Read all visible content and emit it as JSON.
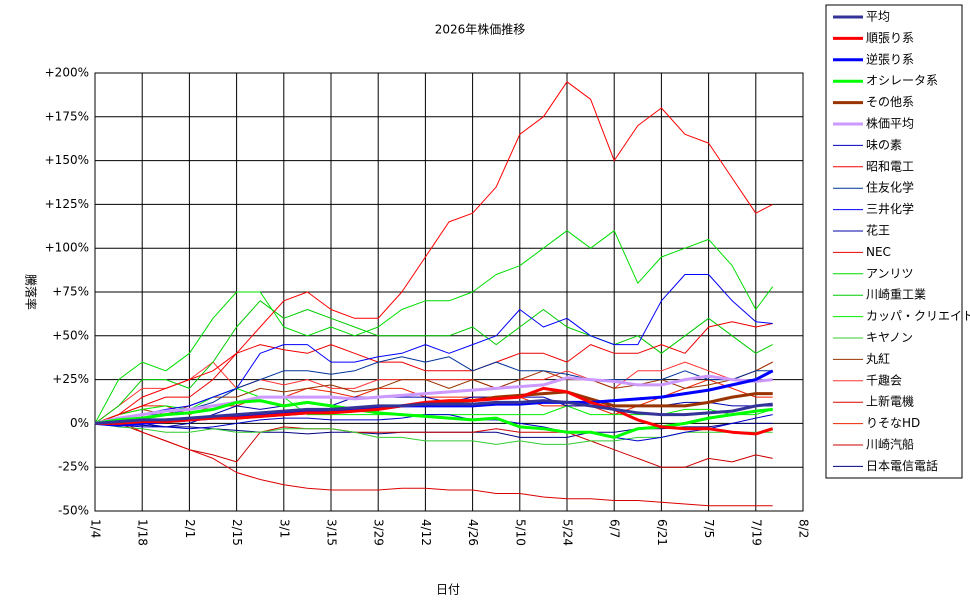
{
  "chart_data": {
    "type": "line",
    "title": "2026年株価推移",
    "x_label": "日付",
    "y_label": "騰落率",
    "x": [
      "1/4",
      "1/11",
      "1/18",
      "1/25",
      "2/1",
      "2/8",
      "2/15",
      "2/22",
      "3/1",
      "3/8",
      "3/15",
      "3/22",
      "3/29",
      "4/5",
      "4/12",
      "4/19",
      "4/26",
      "5/3",
      "5/10",
      "5/17",
      "5/24",
      "5/31",
      "6/7",
      "6/14",
      "6/21",
      "6/28",
      "7/5",
      "7/12",
      "7/19",
      "7/24"
    ],
    "xlim": [
      "1/4",
      "8/2"
    ],
    "xticks": [
      "1/4",
      "1/18",
      "2/1",
      "2/15",
      "3/1",
      "3/15",
      "3/29",
      "4/12",
      "4/26",
      "5/10",
      "5/24",
      "6/7",
      "6/21",
      "7/5",
      "7/19",
      "8/2"
    ],
    "ylim": [
      -50,
      200
    ],
    "yticks": [
      {
        "value": -50,
        "label": "-50%"
      },
      {
        "value": -25,
        "label": "-25%"
      },
      {
        "value": 0,
        "label": "0%"
      },
      {
        "value": 25,
        "label": "+25%"
      },
      {
        "value": 50,
        "label": "+50%"
      },
      {
        "value": 75,
        "label": "+75%"
      },
      {
        "value": 100,
        "label": "+100%"
      },
      {
        "value": 125,
        "label": "+125%"
      },
      {
        "value": 150,
        "label": "+150%"
      },
      {
        "value": 175,
        "label": "+175%"
      },
      {
        "value": 200,
        "label": "+200%"
      }
    ],
    "grid": true,
    "legend": "right",
    "series": [
      {
        "name": "平均",
        "color": "#333399",
        "width": 3,
        "values": [
          0,
          1,
          2,
          2,
          3,
          4,
          5,
          6,
          7,
          8,
          8,
          9,
          10,
          10,
          11,
          11,
          11,
          12,
          12,
          13,
          12,
          10,
          8,
          6,
          5,
          5,
          6,
          7,
          10,
          11
        ]
      },
      {
        "name": "順張り系",
        "color": "#ff0000",
        "width": 3,
        "values": [
          0,
          0,
          1,
          1,
          2,
          3,
          3,
          4,
          5,
          6,
          6,
          7,
          8,
          10,
          12,
          13,
          13,
          14,
          15,
          20,
          18,
          12,
          8,
          2,
          -2,
          -3,
          -3,
          -5,
          -6,
          -3
        ]
      },
      {
        "name": "逆張り系",
        "color": "#0000ff",
        "width": 3,
        "values": [
          0,
          -1,
          0,
          1,
          2,
          3,
          4,
          5,
          6,
          7,
          8,
          8,
          9,
          10,
          10,
          10,
          10,
          11,
          11,
          12,
          12,
          12,
          13,
          14,
          15,
          17,
          19,
          22,
          25,
          30
        ]
      },
      {
        "name": "オシレータ系",
        "color": "#00ff00",
        "width": 3,
        "values": [
          0,
          2,
          3,
          5,
          6,
          8,
          12,
          13,
          10,
          12,
          10,
          8,
          6,
          5,
          4,
          3,
          2,
          3,
          -2,
          -3,
          -5,
          -5,
          -8,
          -3,
          -2,
          0,
          3,
          5,
          7,
          8
        ]
      },
      {
        "name": "その他系",
        "color": "#993300",
        "width": 3,
        "values": [
          0,
          1,
          1,
          2,
          2,
          3,
          3,
          4,
          5,
          6,
          7,
          8,
          9,
          10,
          11,
          12,
          13,
          15,
          16,
          17,
          18,
          14,
          10,
          10,
          10,
          10,
          12,
          15,
          17,
          17
        ]
      },
      {
        "name": "株価平均",
        "color": "#cc99ff",
        "width": 3,
        "values": [
          0,
          3,
          5,
          7,
          8,
          10,
          12,
          15,
          15,
          15,
          15,
          14,
          15,
          16,
          17,
          18,
          19,
          20,
          21,
          22,
          26,
          25,
          24,
          22,
          22,
          25,
          27,
          25,
          24,
          25
        ]
      },
      {
        "name": "味の素",
        "color": "#0000cc",
        "width": 1,
        "values": [
          0,
          -1,
          -2,
          -2,
          -3,
          -2,
          0,
          2,
          3,
          3,
          2,
          2,
          2,
          3,
          5,
          5,
          2,
          2,
          0,
          -2,
          -5,
          -5,
          -8,
          -10,
          -8,
          -5,
          -3,
          0,
          3,
          5
        ]
      },
      {
        "name": "昭和電工",
        "color": "#ff0000",
        "width": 1,
        "values": [
          0,
          5,
          15,
          20,
          25,
          30,
          40,
          55,
          70,
          75,
          65,
          60,
          60,
          75,
          95,
          115,
          120,
          135,
          165,
          175,
          195,
          185,
          150,
          170,
          180,
          165,
          160,
          140,
          120,
          125
        ]
      },
      {
        "name": "住友化学",
        "color": "#003399",
        "width": 1,
        "values": [
          0,
          2,
          5,
          5,
          8,
          12,
          20,
          25,
          30,
          30,
          28,
          30,
          35,
          38,
          35,
          38,
          30,
          35,
          30,
          30,
          28,
          25,
          25,
          25,
          25,
          30,
          25,
          25,
          30,
          30
        ]
      },
      {
        "name": "三井化学",
        "color": "#0000ff",
        "width": 1,
        "values": [
          0,
          3,
          5,
          8,
          10,
          15,
          20,
          40,
          45,
          45,
          35,
          35,
          38,
          40,
          45,
          40,
          45,
          50,
          65,
          55,
          60,
          50,
          45,
          45,
          70,
          85,
          85,
          70,
          58,
          57
        ]
      },
      {
        "name": "花王",
        "color": "#0000aa",
        "width": 1,
        "values": [
          0,
          0,
          0,
          -2,
          0,
          5,
          10,
          8,
          10,
          12,
          10,
          15,
          15,
          15,
          15,
          12,
          15,
          15,
          15,
          15,
          10,
          10,
          10,
          10,
          10,
          12,
          12,
          10,
          10,
          10
        ]
      },
      {
        "name": "NEC",
        "color": "#ee0000",
        "width": 1,
        "values": [
          0,
          5,
          10,
          15,
          15,
          25,
          40,
          45,
          42,
          40,
          45,
          40,
          35,
          35,
          30,
          30,
          30,
          35,
          40,
          40,
          35,
          45,
          40,
          40,
          45,
          40,
          55,
          58,
          55,
          57
        ]
      },
      {
        "name": "アンリツ",
        "color": "#00dd00",
        "width": 1,
        "values": [
          0,
          25,
          35,
          30,
          40,
          60,
          75,
          75,
          55,
          50,
          55,
          50,
          55,
          65,
          70,
          70,
          75,
          85,
          90,
          100,
          110,
          100,
          110,
          80,
          95,
          100,
          105,
          90,
          65,
          78
        ]
      },
      {
        "name": "川崎重工業",
        "color": "#00cc00",
        "width": 1,
        "values": [
          0,
          10,
          25,
          25,
          20,
          35,
          55,
          70,
          60,
          65,
          60,
          55,
          50,
          50,
          50,
          50,
          55,
          45,
          55,
          65,
          55,
          50,
          45,
          50,
          40,
          50,
          60,
          50,
          40,
          45
        ]
      },
      {
        "name": "カッパ・クリエイト",
        "color": "#00ee00",
        "width": 1,
        "values": [
          0,
          5,
          8,
          10,
          8,
          15,
          20,
          15,
          15,
          5,
          5,
          5,
          5,
          5,
          5,
          5,
          5,
          5,
          5,
          5,
          10,
          5,
          5,
          5,
          5,
          8,
          8,
          5,
          5,
          8
        ]
      },
      {
        "name": "キヤノン",
        "color": "#33cc33",
        "width": 1,
        "values": [
          0,
          -2,
          -3,
          -5,
          -5,
          -3,
          -5,
          -5,
          -3,
          -3,
          -3,
          -5,
          -8,
          -8,
          -10,
          -10,
          -10,
          -12,
          -10,
          -12,
          -12,
          -10,
          -10,
          -8,
          -8,
          -5,
          -5,
          -5,
          -5,
          -5
        ]
      },
      {
        "name": "丸紅",
        "color": "#993300",
        "width": 1,
        "values": [
          0,
          5,
          8,
          5,
          10,
          15,
          15,
          20,
          18,
          20,
          22,
          18,
          20,
          25,
          25,
          20,
          25,
          20,
          25,
          30,
          25,
          25,
          20,
          22,
          25,
          20,
          22,
          25,
          30,
          35
        ]
      },
      {
        "name": "千趣会",
        "color": "#ff3333",
        "width": 1,
        "values": [
          0,
          10,
          20,
          20,
          25,
          35,
          20,
          25,
          22,
          25,
          20,
          20,
          25,
          25,
          25,
          25,
          25,
          20,
          25,
          25,
          30,
          25,
          20,
          30,
          30,
          35,
          30,
          25,
          30,
          35
        ]
      },
      {
        "name": "上新電機",
        "color": "#dd0000",
        "width": 1,
        "values": [
          0,
          2,
          -5,
          -10,
          -15,
          -20,
          -28,
          -32,
          -35,
          -37,
          -38,
          -38,
          -38,
          -37,
          -37,
          -38,
          -38,
          -40,
          -40,
          -42,
          -43,
          -43,
          -44,
          -44,
          -45,
          -46,
          -47,
          -47,
          -47,
          -47
        ]
      },
      {
        "name": "りそなHD",
        "color": "#ee2200",
        "width": 1,
        "values": [
          0,
          5,
          10,
          10,
          5,
          10,
          10,
          15,
          15,
          20,
          18,
          15,
          20,
          20,
          15,
          15,
          15,
          15,
          15,
          10,
          10,
          10,
          5,
          10,
          15,
          20,
          25,
          20,
          15,
          15
        ]
      },
      {
        "name": "川崎汽船",
        "color": "#cc0000",
        "width": 1,
        "values": [
          0,
          0,
          -5,
          -10,
          -15,
          -18,
          -22,
          -5,
          -2,
          -3,
          -3,
          -5,
          -5,
          -5,
          -5,
          -5,
          -5,
          -3,
          -5,
          -5,
          -5,
          -10,
          -15,
          -20,
          -25,
          -25,
          -20,
          -22,
          -18,
          -20
        ]
      },
      {
        "name": "日本電信電話",
        "color": "#000080",
        "width": 1,
        "values": [
          0,
          -1,
          -1,
          -2,
          -2,
          -3,
          -4,
          -5,
          -5,
          -6,
          -5,
          -5,
          -6,
          -5,
          -5,
          -5,
          -5,
          -5,
          -8,
          -8,
          -8,
          -5,
          -5,
          -3,
          -3,
          -2,
          -2,
          0,
          0,
          0
        ]
      }
    ]
  }
}
